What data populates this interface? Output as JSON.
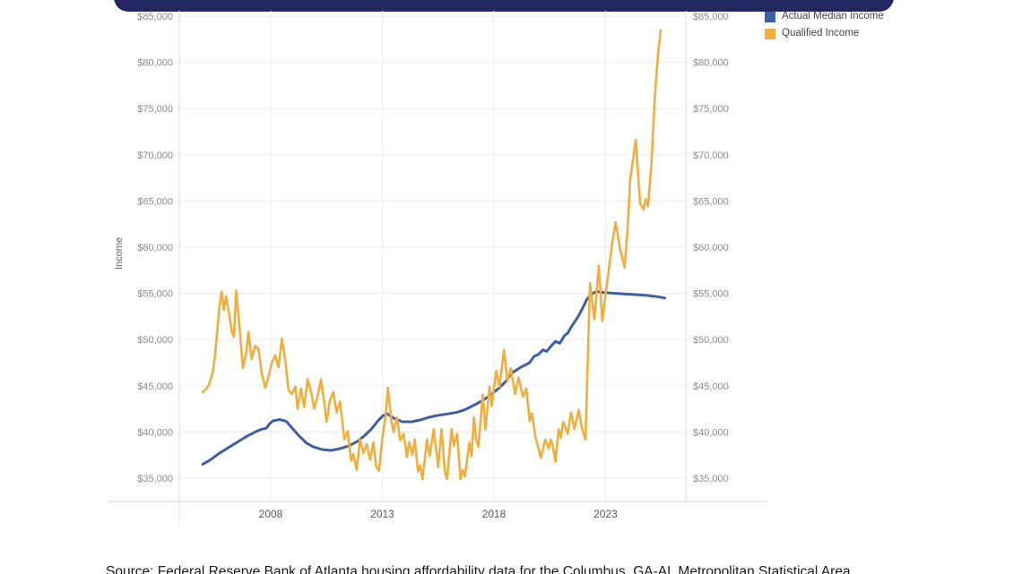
{
  "header": {
    "bar_color": "#23275F"
  },
  "legend": {
    "items": [
      {
        "label": "Actual Median Income",
        "color": "#3D5FA7"
      },
      {
        "label": "Qualified Income",
        "color": "#EFAE3E"
      }
    ]
  },
  "source_note": "Source: Federal Reserve Bank of Atlanta housing affordability data for the Columbus, GA-AL Metropolitan Statistical Area",
  "colors": {
    "actual_median_income_line": "#3D5FA7",
    "qualified_income_line": "#EFAE3E",
    "gridline": "#EDEDED",
    "axis_line": "#D8D8D8",
    "y_tick_label": "#8C8C8C",
    "x_tick_label": "#595959",
    "axis_title": "#666666"
  },
  "chart_data": {
    "type": "line",
    "title": "",
    "xlabel": "",
    "ylabel": "Income",
    "ylim": [
      35000,
      85000
    ],
    "xlim": [
      2003.9,
      2026.6
    ],
    "grid": true,
    "legend_position": "top-right",
    "y_ticks": [
      35000,
      40000,
      45000,
      50000,
      55000,
      60000,
      65000,
      70000,
      75000,
      80000,
      85000
    ],
    "y_tick_labels": [
      "$35,000",
      "$40,000",
      "$45,000",
      "$50,000",
      "$55,000",
      "$60,000",
      "$65,000",
      "$70,000",
      "$75,000",
      "$80,000",
      "$85,000"
    ],
    "y_axis_labels_both_sides": true,
    "x_ticks": [
      2008,
      2013,
      2018,
      2023
    ],
    "x_tick_labels": [
      "2008",
      "2013",
      "2018",
      "2023"
    ],
    "series": [
      {
        "name": "Actual Median Income",
        "color": "#3D5FA7",
        "points": [
          [
            2004.95,
            36500
          ],
          [
            2005.3,
            37000
          ],
          [
            2005.7,
            37700
          ],
          [
            2006.1,
            38300
          ],
          [
            2006.5,
            38900
          ],
          [
            2006.9,
            39500
          ],
          [
            2007.3,
            40000
          ],
          [
            2007.6,
            40300
          ],
          [
            2007.8,
            40400
          ],
          [
            2007.95,
            40900
          ],
          [
            2008.1,
            41200
          ],
          [
            2008.4,
            41350
          ],
          [
            2008.7,
            41150
          ],
          [
            2009.0,
            40300
          ],
          [
            2009.3,
            39500
          ],
          [
            2009.6,
            38800
          ],
          [
            2009.9,
            38400
          ],
          [
            2010.3,
            38100
          ],
          [
            2010.7,
            38000
          ],
          [
            2011.1,
            38200
          ],
          [
            2011.5,
            38500
          ],
          [
            2011.9,
            39000
          ],
          [
            2012.2,
            39600
          ],
          [
            2012.5,
            40300
          ],
          [
            2012.8,
            41200
          ],
          [
            2013.0,
            41700
          ],
          [
            2013.2,
            42000
          ],
          [
            2013.5,
            41500
          ],
          [
            2013.9,
            41100
          ],
          [
            2014.3,
            41100
          ],
          [
            2014.7,
            41300
          ],
          [
            2015.1,
            41600
          ],
          [
            2015.5,
            41800
          ],
          [
            2015.9,
            41950
          ],
          [
            2016.3,
            42100
          ],
          [
            2016.7,
            42400
          ],
          [
            2017.1,
            42900
          ],
          [
            2017.5,
            43400
          ],
          [
            2017.9,
            44100
          ],
          [
            2018.2,
            44700
          ],
          [
            2018.5,
            45400
          ],
          [
            2018.8,
            46400
          ],
          [
            2019.2,
            47000
          ],
          [
            2019.6,
            47500
          ],
          [
            2019.8,
            48200
          ],
          [
            2020.0,
            48400
          ],
          [
            2020.2,
            48900
          ],
          [
            2020.35,
            48700
          ],
          [
            2020.6,
            49400
          ],
          [
            2020.75,
            49800
          ],
          [
            2020.95,
            49600
          ],
          [
            2021.15,
            50400
          ],
          [
            2021.3,
            50700
          ],
          [
            2021.5,
            51500
          ],
          [
            2021.75,
            52400
          ],
          [
            2021.95,
            53300
          ],
          [
            2022.15,
            54300
          ],
          [
            2022.35,
            54900
          ],
          [
            2022.6,
            55200
          ],
          [
            2022.9,
            55100
          ],
          [
            2023.45,
            55000
          ],
          [
            2024.1,
            54900
          ],
          [
            2024.8,
            54800
          ],
          [
            2025.3,
            54650
          ],
          [
            2025.65,
            54500
          ]
        ]
      },
      {
        "name": "Qualified Income",
        "color": "#EFAE3E",
        "points": [
          [
            2004.95,
            44300
          ],
          [
            2005.1,
            44600
          ],
          [
            2005.25,
            45200
          ],
          [
            2005.4,
            46500
          ],
          [
            2005.5,
            48200
          ],
          [
            2005.6,
            50800
          ],
          [
            2005.7,
            53500
          ],
          [
            2005.8,
            55200
          ],
          [
            2005.9,
            53200
          ],
          [
            2006.0,
            54700
          ],
          [
            2006.1,
            53300
          ],
          [
            2006.25,
            50900
          ],
          [
            2006.35,
            50300
          ],
          [
            2006.45,
            55300
          ],
          [
            2006.6,
            51500
          ],
          [
            2006.75,
            46900
          ],
          [
            2006.9,
            48500
          ],
          [
            2007.0,
            50800
          ],
          [
            2007.15,
            47900
          ],
          [
            2007.3,
            49300
          ],
          [
            2007.45,
            49000
          ],
          [
            2007.6,
            46300
          ],
          [
            2007.75,
            44800
          ],
          [
            2007.9,
            46000
          ],
          [
            2008.05,
            47500
          ],
          [
            2008.2,
            48300
          ],
          [
            2008.35,
            47000
          ],
          [
            2008.5,
            50100
          ],
          [
            2008.65,
            47800
          ],
          [
            2008.8,
            44500
          ],
          [
            2008.95,
            44100
          ],
          [
            2009.1,
            44900
          ],
          [
            2009.2,
            42500
          ],
          [
            2009.35,
            44700
          ],
          [
            2009.5,
            42700
          ],
          [
            2009.65,
            45700
          ],
          [
            2009.8,
            44400
          ],
          [
            2009.95,
            42500
          ],
          [
            2010.1,
            43900
          ],
          [
            2010.25,
            45700
          ],
          [
            2010.4,
            43100
          ],
          [
            2010.5,
            41100
          ],
          [
            2010.65,
            43400
          ],
          [
            2010.8,
            44300
          ],
          [
            2010.95,
            42100
          ],
          [
            2011.1,
            43300
          ],
          [
            2011.3,
            39200
          ],
          [
            2011.45,
            40100
          ],
          [
            2011.6,
            36900
          ],
          [
            2011.7,
            37600
          ],
          [
            2011.85,
            35900
          ],
          [
            2012.0,
            39200
          ],
          [
            2012.15,
            37700
          ],
          [
            2012.3,
            38700
          ],
          [
            2012.45,
            37000
          ],
          [
            2012.6,
            38900
          ],
          [
            2012.72,
            36300
          ],
          [
            2012.85,
            35800
          ],
          [
            2013.0,
            39300
          ],
          [
            2013.15,
            41800
          ],
          [
            2013.25,
            44800
          ],
          [
            2013.4,
            41200
          ],
          [
            2013.5,
            40000
          ],
          [
            2013.65,
            41600
          ],
          [
            2013.8,
            39100
          ],
          [
            2013.95,
            39800
          ],
          [
            2014.1,
            37300
          ],
          [
            2014.2,
            38900
          ],
          [
            2014.35,
            37500
          ],
          [
            2014.45,
            39200
          ],
          [
            2014.6,
            35700
          ],
          [
            2014.7,
            36400
          ],
          [
            2014.8,
            34900
          ],
          [
            2015.0,
            39200
          ],
          [
            2015.12,
            37400
          ],
          [
            2015.3,
            40300
          ],
          [
            2015.5,
            36200
          ],
          [
            2015.65,
            40300
          ],
          [
            2015.8,
            35700
          ],
          [
            2015.9,
            34900
          ],
          [
            2016.1,
            40300
          ],
          [
            2016.2,
            38500
          ],
          [
            2016.35,
            39800
          ],
          [
            2016.5,
            34900
          ],
          [
            2016.6,
            35900
          ],
          [
            2016.7,
            35200
          ],
          [
            2016.9,
            38900
          ],
          [
            2017.0,
            37400
          ],
          [
            2017.1,
            41600
          ],
          [
            2017.2,
            39200
          ],
          [
            2017.3,
            38400
          ],
          [
            2017.5,
            44000
          ],
          [
            2017.62,
            40300
          ],
          [
            2017.8,
            44900
          ],
          [
            2017.9,
            42800
          ],
          [
            2018.1,
            46600
          ],
          [
            2018.25,
            44900
          ],
          [
            2018.45,
            48900
          ],
          [
            2018.6,
            45500
          ],
          [
            2018.75,
            46900
          ],
          [
            2018.95,
            44100
          ],
          [
            2019.1,
            45900
          ],
          [
            2019.3,
            43800
          ],
          [
            2019.45,
            44700
          ],
          [
            2019.6,
            41200
          ],
          [
            2019.7,
            42000
          ],
          [
            2019.85,
            39500
          ],
          [
            2020.0,
            38200
          ],
          [
            2020.1,
            37200
          ],
          [
            2020.3,
            39200
          ],
          [
            2020.45,
            38200
          ],
          [
            2020.55,
            39200
          ],
          [
            2020.65,
            38300
          ],
          [
            2020.75,
            36800
          ],
          [
            2020.9,
            40300
          ],
          [
            2021.0,
            39400
          ],
          [
            2021.1,
            41100
          ],
          [
            2021.3,
            39800
          ],
          [
            2021.45,
            42100
          ],
          [
            2021.6,
            40300
          ],
          [
            2021.8,
            42400
          ],
          [
            2021.9,
            40900
          ],
          [
            2022.0,
            39900
          ],
          [
            2022.1,
            39200
          ],
          [
            2022.3,
            56100
          ],
          [
            2022.5,
            52200
          ],
          [
            2022.7,
            58000
          ],
          [
            2022.85,
            52000
          ],
          [
            2023.05,
            55800
          ],
          [
            2023.2,
            58600
          ],
          [
            2023.3,
            60500
          ],
          [
            2023.45,
            62700
          ],
          [
            2023.65,
            59800
          ],
          [
            2023.85,
            57800
          ],
          [
            2024.0,
            62500
          ],
          [
            2024.1,
            67300
          ],
          [
            2024.35,
            71600
          ],
          [
            2024.55,
            64700
          ],
          [
            2024.7,
            64100
          ],
          [
            2024.8,
            65200
          ],
          [
            2024.9,
            64400
          ],
          [
            2025.05,
            68800
          ],
          [
            2025.2,
            76100
          ],
          [
            2025.35,
            80900
          ],
          [
            2025.47,
            83500
          ]
        ]
      }
    ]
  }
}
